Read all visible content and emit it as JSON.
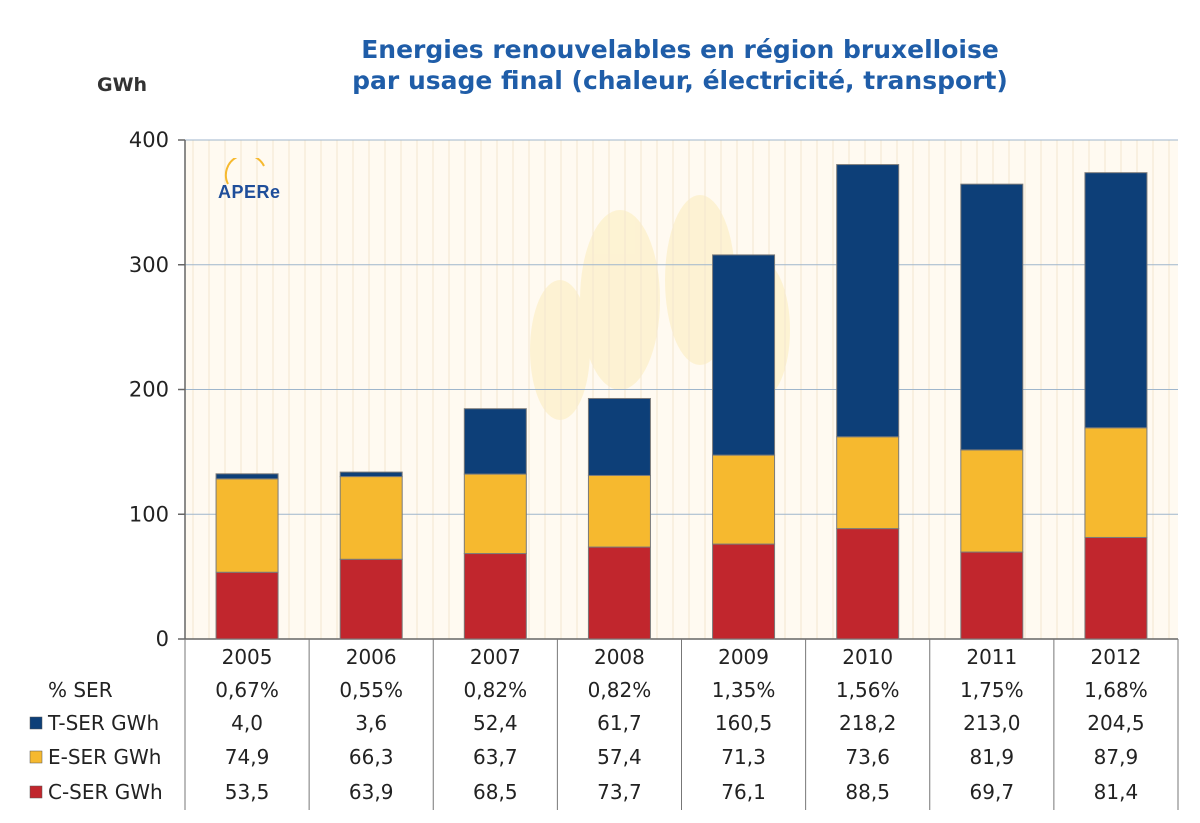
{
  "title_line1": "Energies renouvelables en région bruxelloise",
  "title_line2": "par usage final (chaleur, électricité, transport)",
  "unit": "GWh",
  "logo_text": "APERe",
  "colors": {
    "T": "#0d3f78",
    "E": "#f6b92f",
    "C": "#c1262d",
    "grid": "#9fb6cc",
    "plotbg": "#fffaf1"
  },
  "chart_data": {
    "type": "bar",
    "stacked": true,
    "categories": [
      "2005",
      "2006",
      "2007",
      "2008",
      "2009",
      "2010",
      "2011",
      "2012"
    ],
    "ylim": [
      0,
      400
    ],
    "yticks": [
      0,
      100,
      200,
      300,
      400
    ],
    "series": [
      {
        "name": "C-SER GWh",
        "key": "C",
        "values": [
          53.5,
          63.9,
          68.5,
          73.7,
          76.1,
          88.5,
          69.7,
          81.4
        ],
        "labels": [
          "53,5",
          "63,9",
          "68,5",
          "73,7",
          "76,1",
          "88,5",
          "69,7",
          "81,4"
        ]
      },
      {
        "name": "E-SER GWh",
        "key": "E",
        "values": [
          74.9,
          66.3,
          63.7,
          57.4,
          71.3,
          73.6,
          81.9,
          87.9
        ],
        "labels": [
          "74,9",
          "66,3",
          "63,7",
          "57,4",
          "71,3",
          "73,6",
          "81,9",
          "87,9"
        ]
      },
      {
        "name": "T-SER GWh",
        "key": "T",
        "values": [
          4.0,
          3.6,
          52.4,
          61.7,
          160.5,
          218.2,
          213.0,
          204.5
        ],
        "labels": [
          "4,0",
          "3,6",
          "52,4",
          "61,7",
          "160,5",
          "218,2",
          "213,0",
          "204,5"
        ]
      }
    ],
    "ser_row": {
      "name": "% SER",
      "labels": [
        "0,67%",
        "0,55%",
        "0,82%",
        "0,82%",
        "1,35%",
        "1,56%",
        "1,75%",
        "1,68%"
      ]
    },
    "table_row_order": [
      "T",
      "E",
      "C"
    ]
  }
}
